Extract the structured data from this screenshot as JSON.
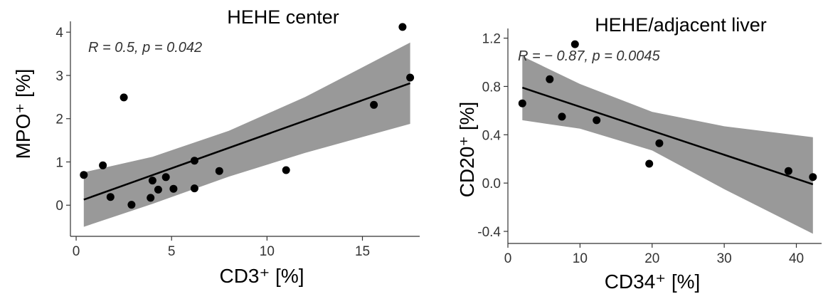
{
  "chart_data": [
    {
      "type": "scatter",
      "title": "HEHE center",
      "annotation": "R = 0.5, p = 0.042",
      "xlabel": "CD3⁺ [%]",
      "ylabel": "MPO⁺ [%]",
      "xlim": [
        -0.3,
        18.0
      ],
      "ylim": [
        -0.72,
        4.25
      ],
      "xticks": [
        0,
        5,
        10,
        15
      ],
      "xtick_labels": [
        "0",
        "5",
        "10",
        "15"
      ],
      "yticks": [
        0,
        1,
        2,
        3,
        4
      ],
      "ytick_labels": [
        "0",
        "1",
        "2",
        "3",
        "4"
      ],
      "grid": false,
      "points": [
        {
          "x": 0.4,
          "y": 0.7
        },
        {
          "x": 1.4,
          "y": 0.92
        },
        {
          "x": 1.8,
          "y": 0.19
        },
        {
          "x": 2.5,
          "y": 2.49
        },
        {
          "x": 2.9,
          "y": 0.01
        },
        {
          "x": 3.9,
          "y": 0.17
        },
        {
          "x": 4.0,
          "y": 0.57
        },
        {
          "x": 4.3,
          "y": 0.36
        },
        {
          "x": 4.7,
          "y": 0.65
        },
        {
          "x": 5.1,
          "y": 0.38
        },
        {
          "x": 6.2,
          "y": 1.03
        },
        {
          "x": 6.2,
          "y": 0.39
        },
        {
          "x": 7.5,
          "y": 0.79
        },
        {
          "x": 11.0,
          "y": 0.81
        },
        {
          "x": 15.6,
          "y": 2.32
        },
        {
          "x": 17.1,
          "y": 4.12
        },
        {
          "x": 17.5,
          "y": 2.95
        }
      ],
      "fit": {
        "x": [
          0.4,
          17.5
        ],
        "y": [
          0.13,
          2.82
        ]
      },
      "band": {
        "x": [
          0.4,
          4.0,
          8.0,
          12.0,
          17.5
        ],
        "upper": [
          0.76,
          1.12,
          1.72,
          2.5,
          3.76
        ],
        "lower": [
          -0.5,
          0.03,
          0.66,
          1.21,
          1.88
        ]
      },
      "colors": {
        "points": "#000000",
        "line": "#000000",
        "band": "#999999"
      }
    },
    {
      "type": "scatter",
      "title": "HEHE/adjacent liver",
      "annotation": "R = − 0.87, p = 0.0045",
      "xlabel": "CD34⁺ [%]",
      "ylabel": "CD20⁺ [%]",
      "xlim": [
        0.0,
        43.5
      ],
      "ylim": [
        -0.5,
        1.28
      ],
      "xticks": [
        0,
        10,
        20,
        30,
        40
      ],
      "xtick_labels": [
        "0",
        "10",
        "20",
        "30",
        "40"
      ],
      "yticks": [
        -0.4,
        0.0,
        0.4,
        0.8,
        1.2
      ],
      "ytick_labels": [
        "-0.4",
        "0.0",
        "0.4",
        "0.8",
        "1.2"
      ],
      "grid": false,
      "points": [
        {
          "x": 2.0,
          "y": 0.66
        },
        {
          "x": 5.8,
          "y": 0.86
        },
        {
          "x": 7.5,
          "y": 0.55
        },
        {
          "x": 9.3,
          "y": 1.15
        },
        {
          "x": 12.3,
          "y": 0.52
        },
        {
          "x": 19.6,
          "y": 0.16
        },
        {
          "x": 21.0,
          "y": 0.33
        },
        {
          "x": 38.9,
          "y": 0.1
        },
        {
          "x": 42.3,
          "y": 0.05
        }
      ],
      "fit": {
        "x": [
          2.0,
          42.3
        ],
        "y": [
          0.79,
          -0.01
        ]
      },
      "band": {
        "x": [
          2.0,
          10.0,
          20.0,
          30.0,
          42.3
        ],
        "upper": [
          1.05,
          0.82,
          0.59,
          0.47,
          0.38
        ],
        "lower": [
          0.52,
          0.45,
          0.27,
          -0.05,
          -0.42
        ]
      },
      "colors": {
        "points": "#000000",
        "line": "#000000",
        "band": "#999999"
      }
    }
  ]
}
